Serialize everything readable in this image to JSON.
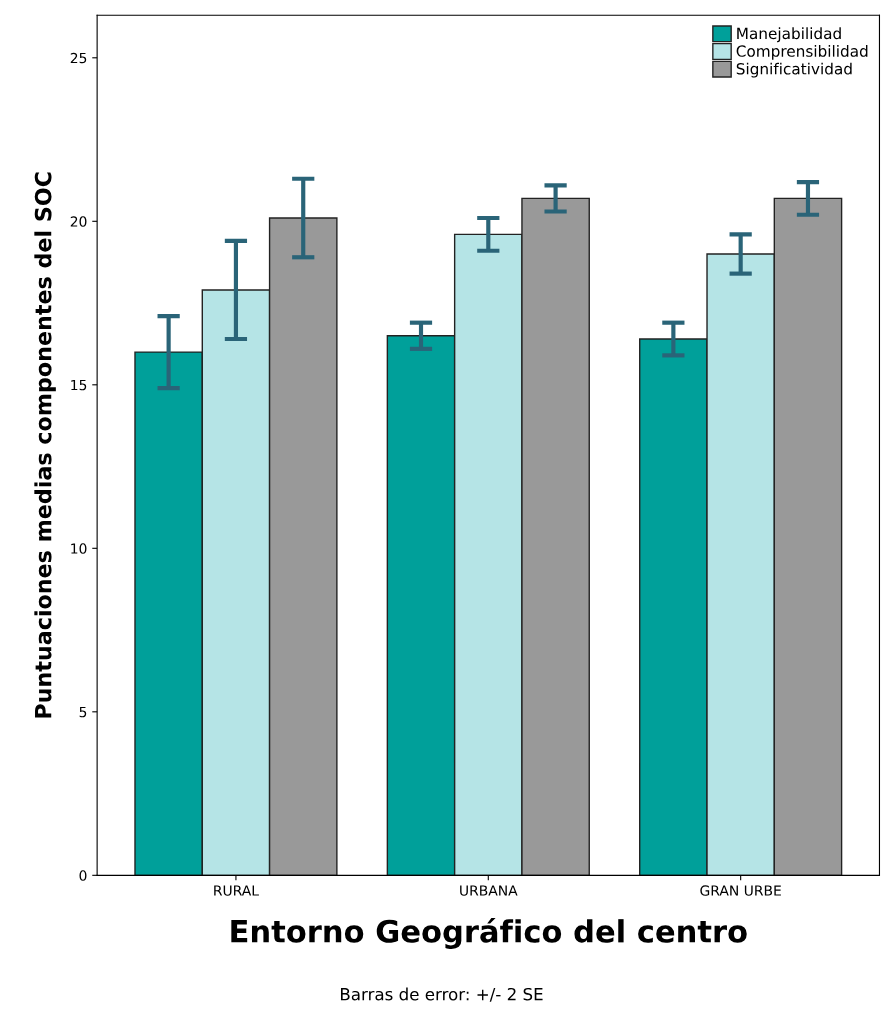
{
  "chart_data": {
    "type": "bar",
    "xlabel": "Entorno Geográfico del centro",
    "ylabel": "Puntuaciones medias componentes del SOC",
    "categories": [
      "RURAL",
      "URBANA",
      "GRAN URBE"
    ],
    "series": [
      {
        "name": "Manejabilidad",
        "color": "#00a09a",
        "values": [
          16.0,
          16.5,
          16.4
        ],
        "errors": [
          1.1,
          0.4,
          0.5
        ]
      },
      {
        "name": "Comprensibilidad",
        "color": "#b5e4e6",
        "values": [
          17.9,
          19.6,
          19.0
        ],
        "errors": [
          1.5,
          0.5,
          0.6
        ]
      },
      {
        "name": "Significatividad",
        "color": "#999999",
        "values": [
          20.1,
          20.7,
          20.7
        ],
        "errors": [
          1.2,
          0.4,
          0.5
        ]
      }
    ],
    "ylim": [
      0,
      26.3
    ],
    "yticks": [
      0,
      5,
      10,
      15,
      20,
      25
    ],
    "grid": false,
    "legend": "top right",
    "annotations": [
      "Barras de error: +/- 2 SE"
    ]
  }
}
